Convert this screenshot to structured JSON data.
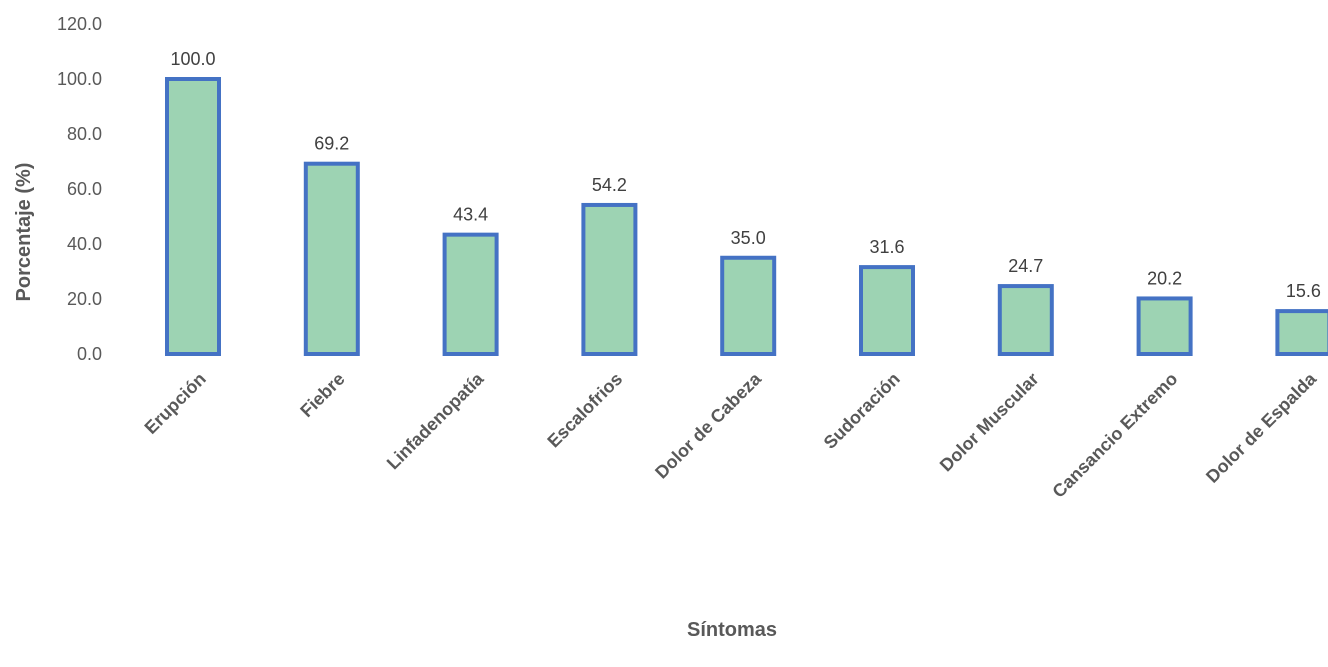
{
  "chart_data": {
    "type": "bar",
    "title": "",
    "xlabel": "Síntomas",
    "ylabel": "Porcentaje (%)",
    "categories": [
      "Erupción",
      "Fiebre",
      "Linfadenopatía",
      "Escalofrios",
      "Dolor de Cabeza",
      "Sudoración",
      "Dolor Muscular",
      "Cansancio Extremo",
      "Dolor de Espalda"
    ],
    "values": [
      100.0,
      69.2,
      43.4,
      54.2,
      35.0,
      31.6,
      24.7,
      20.2,
      15.6
    ],
    "ylim": [
      0,
      120
    ],
    "yticks": [
      "0.0",
      "20.0",
      "40.0",
      "60.0",
      "80.0",
      "100.0",
      "120.0"
    ],
    "grid": false,
    "legend": "none",
    "colors": {
      "bar_fill": "#9dd3b3",
      "bar_border": "#4472c4"
    }
  }
}
